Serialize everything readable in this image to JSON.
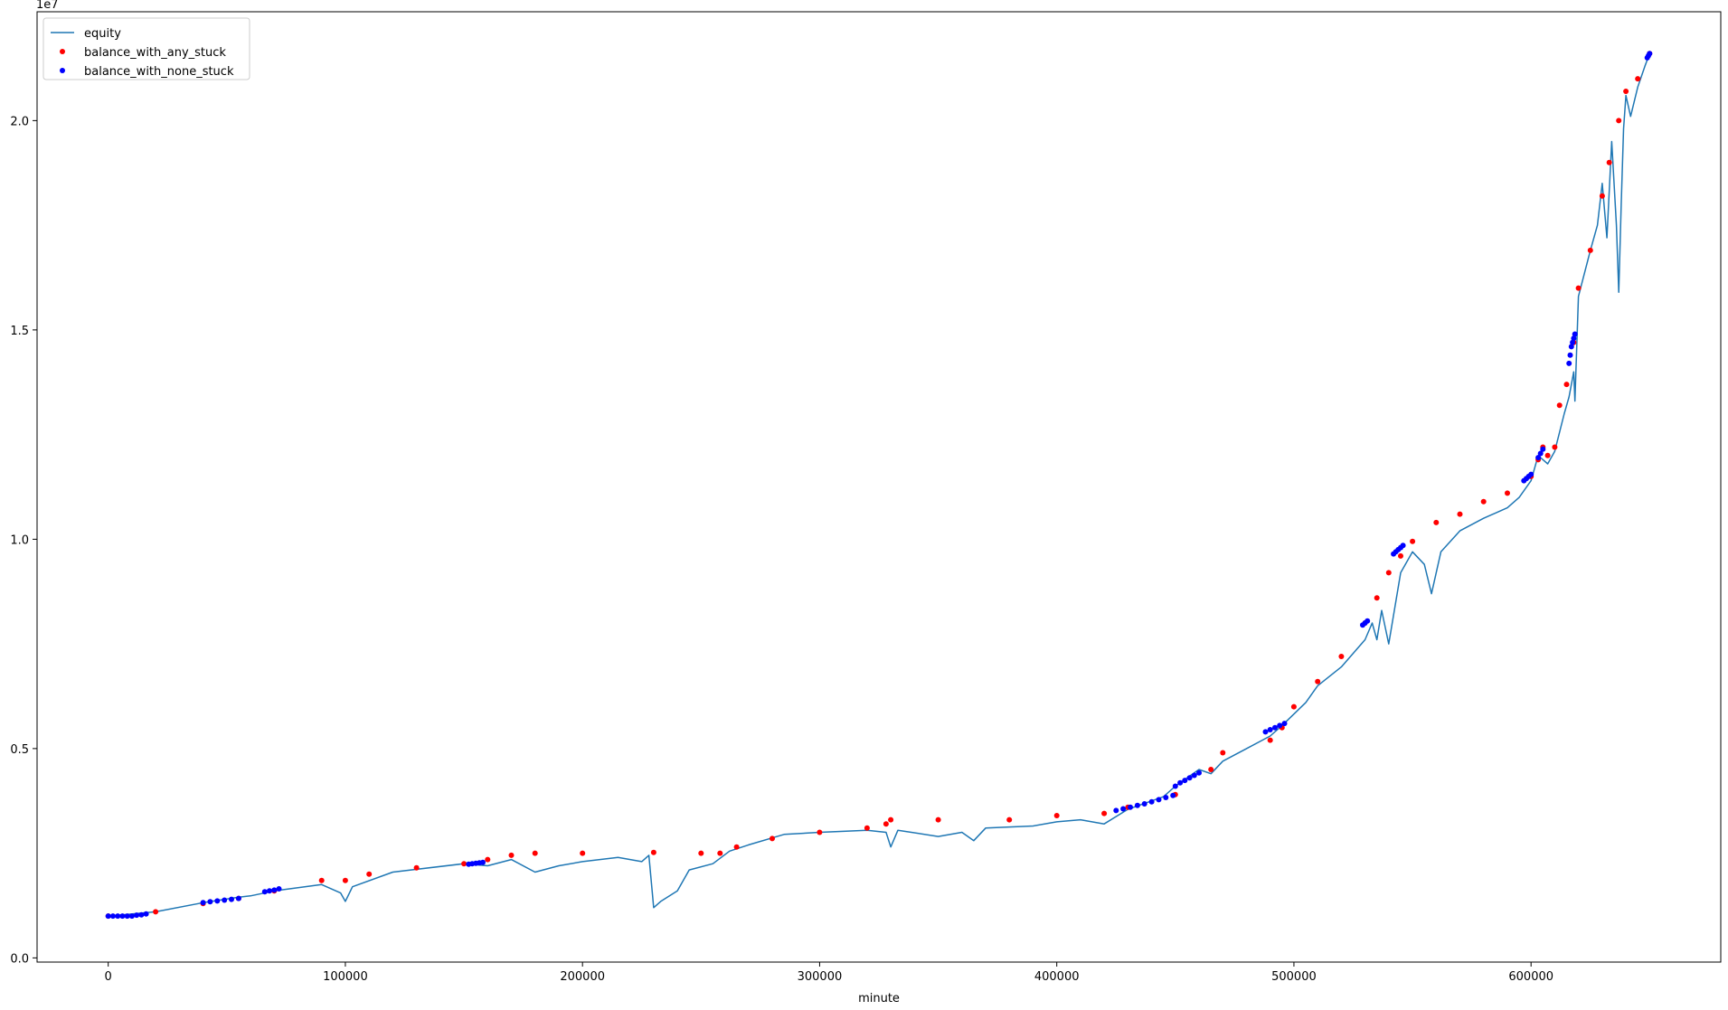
{
  "chart_data": {
    "type": "line",
    "title": "",
    "xlabel": "minute",
    "ylabel": "",
    "y_offset_text": "1e7",
    "xlim": [
      -30000,
      680000
    ],
    "ylim": [
      -100000,
      22600000
    ],
    "xticks": [
      0,
      100000,
      200000,
      300000,
      400000,
      500000,
      600000
    ],
    "xtick_labels": [
      "0",
      "100000",
      "200000",
      "300000",
      "400000",
      "500000",
      "600000"
    ],
    "yticks": [
      0,
      5000000,
      10000000,
      15000000,
      20000000
    ],
    "ytick_labels": [
      "0.0",
      "0.5",
      "1.0",
      "1.5",
      "2.0"
    ],
    "grid": false,
    "legend_position": "top-left",
    "colors": {
      "equity": "#1f77b4",
      "any_stuck": "#ff0000",
      "none_stuck": "#0000ff"
    },
    "legend": [
      {
        "label": "equity",
        "style": "line",
        "color": "#1f77b4"
      },
      {
        "label": "balance_with_any_stuck",
        "style": "dot",
        "color": "#ff0000"
      },
      {
        "label": "balance_with_none_stuck",
        "style": "dot",
        "color": "#0000ff"
      }
    ],
    "series": [
      {
        "name": "equity",
        "style": "line",
        "color": "#1f77b4",
        "x": [
          0,
          20000,
          40000,
          55000,
          60000,
          70000,
          90000,
          98000,
          100000,
          103000,
          120000,
          150000,
          160000,
          170000,
          180000,
          190000,
          200000,
          215000,
          225000,
          228000,
          230000,
          233000,
          240000,
          245000,
          255000,
          262000,
          270000,
          285000,
          300000,
          320000,
          328000,
          330000,
          333000,
          350000,
          360000,
          365000,
          370000,
          390000,
          400000,
          410000,
          420000,
          430000,
          445000,
          450000,
          460000,
          465000,
          470000,
          480000,
          490000,
          495000,
          505000,
          510000,
          520000,
          530000,
          533000,
          535000,
          537000,
          540000,
          545000,
          550000,
          555000,
          558000,
          562000,
          570000,
          580000,
          590000,
          595000,
          600000,
          603000,
          607000,
          610000,
          614000,
          616000,
          618000,
          618500,
          620000,
          625000,
          628000,
          630000,
          632000,
          634000,
          636000,
          637000,
          638000,
          639000,
          640000,
          642000,
          645000,
          648000,
          650000
        ],
        "y": [
          1000000,
          1100000,
          1320000,
          1450000,
          1480000,
          1600000,
          1750000,
          1550000,
          1350000,
          1700000,
          2050000,
          2250000,
          2200000,
          2350000,
          2050000,
          2200000,
          2300000,
          2400000,
          2300000,
          2450000,
          1200000,
          1350000,
          1600000,
          2100000,
          2250000,
          2550000,
          2700000,
          2950000,
          3000000,
          3050000,
          3000000,
          2650000,
          3050000,
          2900000,
          3000000,
          2800000,
          3100000,
          3150000,
          3250000,
          3300000,
          3200000,
          3550000,
          3850000,
          4100000,
          4500000,
          4400000,
          4700000,
          5000000,
          5300000,
          5550000,
          6100000,
          6500000,
          6950000,
          7600000,
          8000000,
          7600000,
          8300000,
          7500000,
          9200000,
          9700000,
          9400000,
          8700000,
          9700000,
          10200000,
          10500000,
          10750000,
          11000000,
          11400000,
          12000000,
          11800000,
          12100000,
          13000000,
          13400000,
          14000000,
          13300000,
          15800000,
          16900000,
          17500000,
          18500000,
          17200000,
          19500000,
          17500000,
          15900000,
          18000000,
          19800000,
          20600000,
          20100000,
          20800000,
          21300000,
          21600000
        ]
      },
      {
        "name": "balance_with_any_stuck",
        "style": "dot",
        "color": "#ff0000",
        "x": [
          0,
          20000,
          40000,
          55000,
          70000,
          90000,
          100000,
          110000,
          130000,
          150000,
          160000,
          170000,
          180000,
          200000,
          230000,
          250000,
          258000,
          265000,
          280000,
          300000,
          320000,
          328000,
          330000,
          350000,
          380000,
          400000,
          420000,
          430000,
          450000,
          465000,
          470000,
          490000,
          495000,
          500000,
          510000,
          520000,
          530000,
          535000,
          540000,
          545000,
          550000,
          560000,
          570000,
          580000,
          590000,
          600000,
          603000,
          605000,
          607000,
          610000,
          612000,
          615000,
          618000,
          620000,
          625000,
          630000,
          633000,
          637000,
          640000,
          645000,
          650000
        ],
        "y": [
          1000000,
          1100000,
          1300000,
          1420000,
          1600000,
          1850000,
          1850000,
          2000000,
          2150000,
          2250000,
          2350000,
          2450000,
          2500000,
          2500000,
          2520000,
          2500000,
          2500000,
          2650000,
          2850000,
          3000000,
          3100000,
          3200000,
          3300000,
          3300000,
          3300000,
          3400000,
          3450000,
          3600000,
          3900000,
          4500000,
          4900000,
          5200000,
          5500000,
          6000000,
          6600000,
          7200000,
          8000000,
          8600000,
          9200000,
          9600000,
          9950000,
          10400000,
          10600000,
          10900000,
          11100000,
          11500000,
          11900000,
          12200000,
          12000000,
          12200000,
          13200000,
          13700000,
          14700000,
          16000000,
          16900000,
          18200000,
          19000000,
          20000000,
          20700000,
          21000000,
          21600000
        ]
      },
      {
        "name": "balance_with_none_stuck",
        "style": "dot",
        "color": "#0000ff",
        "x": [
          0,
          2000,
          4000,
          6000,
          8000,
          10000,
          12000,
          14000,
          16000,
          40000,
          43000,
          46000,
          49000,
          52000,
          55000,
          66000,
          68000,
          70000,
          72000,
          152000,
          153500,
          155000,
          156500,
          158000,
          425000,
          428000,
          431000,
          434000,
          437000,
          440000,
          443000,
          446000,
          449000,
          450000,
          452000,
          454000,
          456000,
          458000,
          460000,
          488000,
          490000,
          492000,
          494000,
          496000,
          529000,
          530000,
          531000,
          542000,
          543000,
          544000,
          545000,
          546000,
          597000,
          598000,
          599000,
          600000,
          603000,
          604000,
          605000,
          616000,
          616500,
          617000,
          617500,
          618000,
          618500,
          649000,
          649500,
          650000
        ],
        "y": [
          1000000,
          1000000,
          1000000,
          1000000,
          1000000,
          1000000,
          1020000,
          1030000,
          1050000,
          1320000,
          1340000,
          1360000,
          1380000,
          1400000,
          1420000,
          1580000,
          1600000,
          1620000,
          1650000,
          2240000,
          2250000,
          2260000,
          2270000,
          2280000,
          3520000,
          3560000,
          3600000,
          3640000,
          3680000,
          3730000,
          3780000,
          3830000,
          3880000,
          4100000,
          4180000,
          4240000,
          4300000,
          4360000,
          4420000,
          5400000,
          5450000,
          5500000,
          5550000,
          5600000,
          7950000,
          8000000,
          8050000,
          9650000,
          9700000,
          9750000,
          9800000,
          9850000,
          11400000,
          11450000,
          11500000,
          11550000,
          11950000,
          12050000,
          12150000,
          14200000,
          14400000,
          14600000,
          14700000,
          14800000,
          14900000,
          21500000,
          21550000,
          21600000
        ]
      }
    ]
  }
}
